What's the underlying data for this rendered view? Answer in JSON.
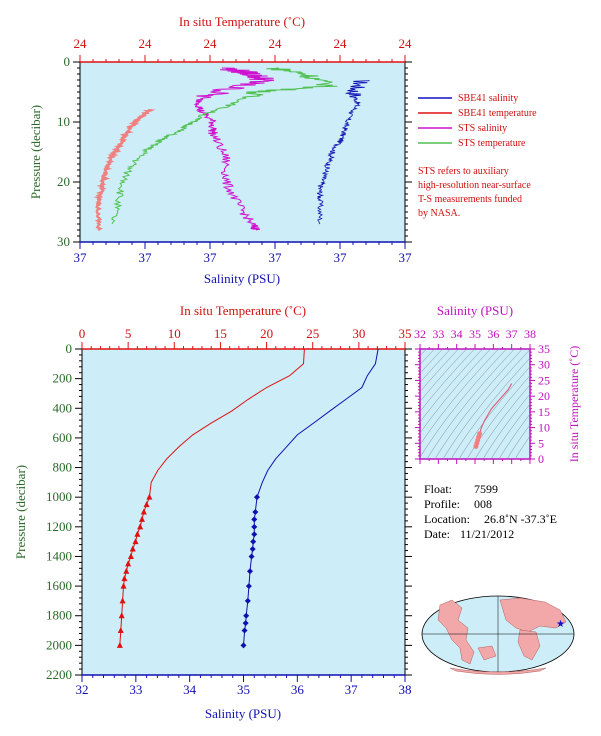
{
  "top_panel": {
    "x_top_label": "In situ Temperature (˚C)",
    "x_top_ticks": [
      "24",
      "24",
      "24",
      "24",
      "24",
      "24"
    ],
    "x_bottom_label": "Salinity (PSU)",
    "x_bottom_ticks": [
      "37",
      "37",
      "37",
      "37",
      "37",
      "37"
    ],
    "y_label": "Pressure (decibar)",
    "y_ticks": [
      "0",
      "10",
      "20",
      "30"
    ]
  },
  "legend": {
    "items": [
      {
        "label": "SBE41 salinity",
        "color": "#1010c0"
      },
      {
        "label": "SBE41 temperature",
        "color": "#e01010"
      },
      {
        "label": "STS salinity",
        "color": "#d010d0"
      },
      {
        "label": "STS temperature",
        "color": "#50c050"
      }
    ],
    "note_lines": [
      "STS refers to auxiliary",
      "high-resolution near-surface",
      "T-S measurements funded",
      "by NASA."
    ]
  },
  "main_panel": {
    "x_top_label": "In situ Temperature (˚C)",
    "x_top_ticks": [
      "0",
      "5",
      "10",
      "15",
      "20",
      "25",
      "30",
      "35"
    ],
    "x_bottom_label": "Salinity (PSU)",
    "x_bottom_ticks": [
      "32",
      "33",
      "34",
      "35",
      "36",
      "37",
      "38"
    ],
    "y_label": "Pressure (decibar)",
    "y_ticks": [
      "0",
      "200",
      "400",
      "600",
      "800",
      "1000",
      "1200",
      "1400",
      "1600",
      "1800",
      "2000",
      "2200"
    ]
  },
  "ts_panel": {
    "x_label": "Salinity (PSU)",
    "x_ticks": [
      "32",
      "33",
      "34",
      "35",
      "36",
      "37",
      "38"
    ],
    "y_label": "In situ Temperature (˚C)",
    "y_ticks": [
      "0",
      "5",
      "10",
      "15",
      "20",
      "25",
      "30",
      "35"
    ]
  },
  "info": {
    "float_label": "Float:",
    "float_value": "7599",
    "profile_label": "Profile:",
    "profile_value": "008",
    "location_label": "Location:",
    "location_value": "26.8˚N  -37.3˚E",
    "date_label": "Date:",
    "date_value": "11/21/2012"
  },
  "colors": {
    "plot_bg": "#cdeef8",
    "temperature": "#e01010",
    "salinity": "#1010b0",
    "sts_salinity": "#d010d0",
    "sts_temperature": "#50c050",
    "sbe_temp_top": "#f08080",
    "magenta_axis": "#c010c0",
    "pressure_axis": "#2a6a2a"
  },
  "chart_data": [
    {
      "type": "line",
      "series": [
        {
          "name": "SBE41 salinity",
          "x": [
            37.48,
            37.46,
            37.47,
            37.45,
            37.44,
            37.43,
            37.41,
            37.4,
            37.39,
            37.38,
            37.38,
            37.38
          ],
          "y": [
            3,
            5,
            7,
            9,
            11,
            13,
            15,
            17,
            19,
            21,
            23,
            27
          ]
        },
        {
          "name": "SBE41 temperature",
          "x": [
            23.0,
            22.7,
            22.4,
            22.1,
            21.8,
            21.5,
            21.3,
            21.2,
            21.1,
            21.0,
            21.0
          ],
          "y": [
            8,
            9,
            10,
            12,
            14,
            16,
            18,
            20,
            22,
            24,
            28
          ]
        },
        {
          "name": "STS salinity",
          "x": [
            37.2,
            37.3,
            37.35,
            37.25,
            37.1,
            37.1,
            37.15,
            37.15,
            37.2,
            37.2,
            37.25,
            37.3,
            37.32
          ],
          "y": [
            1,
            2,
            3,
            4,
            6,
            8,
            10,
            12,
            16,
            20,
            24,
            27,
            28
          ]
        },
        {
          "name": "STS temperature",
          "x": [
            23.8,
            24.2,
            24.5,
            23.6,
            23.3,
            22.9,
            22.7,
            22.4,
            22.2,
            22.0,
            21.9,
            21.8
          ],
          "y": [
            1,
            2,
            4,
            5,
            7,
            9,
            11,
            13,
            15,
            18,
            22,
            27
          ]
        }
      ],
      "ylim": [
        30,
        0
      ]
    },
    {
      "type": "line",
      "series": [
        {
          "name": "Temperature",
          "x": [
            24.1,
            24.0,
            22.5,
            20.0,
            18.0,
            16.2,
            14.0,
            12.0,
            10.5,
            9.2,
            8.2,
            7.5,
            7.3,
            7.0,
            6.7,
            6.5,
            6.3,
            6.0,
            5.8,
            5.5,
            5.3,
            5.0,
            4.8,
            4.6,
            4.5,
            4.4,
            4.3,
            4.2,
            4.1
          ],
          "y": [
            0,
            100,
            180,
            260,
            340,
            420,
            500,
            580,
            660,
            740,
            820,
            900,
            1000,
            1050,
            1100,
            1150,
            1200,
            1250,
            1300,
            1350,
            1400,
            1450,
            1500,
            1550,
            1600,
            1700,
            1800,
            1900,
            2000
          ]
        },
        {
          "name": "Salinity",
          "x": [
            37.5,
            37.45,
            37.3,
            37.2,
            36.9,
            36.6,
            36.3,
            36.0,
            35.8,
            35.6,
            35.45,
            35.35,
            35.25,
            35.22,
            35.2,
            35.2,
            35.2,
            35.18,
            35.17,
            35.15,
            35.12,
            35.1,
            35.08,
            35.05,
            35.04,
            35.02,
            35.0
          ],
          "y": [
            0,
            100,
            180,
            260,
            340,
            420,
            500,
            580,
            660,
            740,
            820,
            900,
            1000,
            1100,
            1150,
            1200,
            1250,
            1300,
            1350,
            1400,
            1500,
            1600,
            1700,
            1800,
            1850,
            1900,
            2000
          ]
        }
      ],
      "xlim_temperature": [
        0,
        35
      ],
      "xlim_salinity": [
        32,
        38
      ],
      "ylim": [
        2200,
        0
      ]
    },
    {
      "type": "scatter",
      "series": [
        {
          "name": "T-S",
          "salinity": [
            37.0,
            36.8,
            36.5,
            36.2,
            35.9,
            35.7,
            35.5,
            35.35,
            35.25,
            35.2,
            35.15,
            35.1,
            35.05
          ],
          "temperature": [
            24,
            22,
            20,
            18,
            16,
            14,
            12,
            10,
            8,
            7,
            6,
            5,
            4
          ]
        }
      ],
      "xlim": [
        32,
        38
      ],
      "ylim": [
        0,
        35
      ]
    }
  ]
}
